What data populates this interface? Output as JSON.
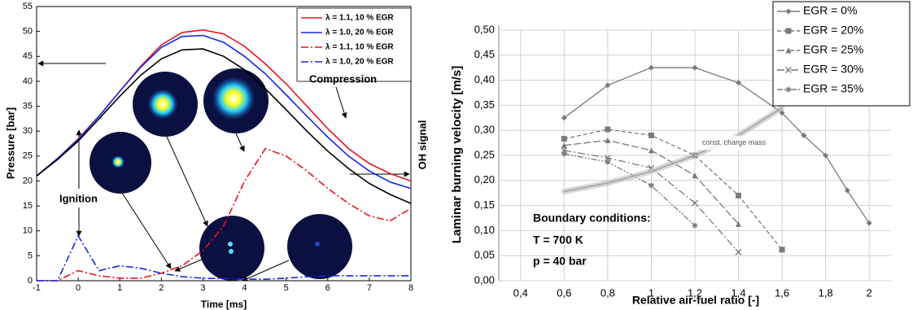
{
  "chart_data": [
    {
      "type": "line",
      "xlabel": "Time [ms]",
      "ylabel": "Pressure [bar]",
      "y2label": "OH signal",
      "x": [
        -1,
        -0.5,
        0,
        0.5,
        1,
        1.5,
        2,
        2.5,
        3,
        3.5,
        4,
        4.5,
        5,
        5.5,
        6,
        6.5,
        7,
        7.5,
        8
      ],
      "series": [
        {
          "name": "λ = 1.1, 10 % EGR",
          "color": "#e8141e",
          "dash": "solid",
          "values": [
            21,
            24.5,
            28.5,
            33,
            38,
            43,
            47.3,
            49.8,
            50.3,
            49.5,
            47,
            43.5,
            39.5,
            35,
            30.5,
            26.5,
            23.5,
            21.5,
            20
          ]
        },
        {
          "name": "λ = 1.0, 20 % EGR",
          "color": "#1428e6",
          "dash": "solid",
          "values": [
            21,
            24.5,
            28.3,
            33,
            38,
            42.8,
            46.8,
            49,
            49.2,
            47.8,
            45,
            41.5,
            37.3,
            33,
            28.8,
            25,
            22,
            19.8,
            18.5
          ]
        },
        {
          "name": "λ = 1.1, 10 % EGR",
          "color": "#e8141e",
          "dash": "dash-dot",
          "values": [
            0,
            0,
            2,
            1,
            0.5,
            0.5,
            1.5,
            3,
            6,
            11,
            20,
            26.5,
            25,
            22,
            18.5,
            15.5,
            13,
            12,
            14.5
          ]
        },
        {
          "name": "λ = 1.0, 20 % EGR",
          "color": "#1428e6",
          "dash": "dash-dot",
          "values": [
            0,
            0,
            9,
            2,
            3,
            2.5,
            1.5,
            0.8,
            0.5,
            0.4,
            0.3,
            0.3,
            0.5,
            0.8,
            1,
            1,
            1,
            1,
            1
          ]
        },
        {
          "name": null,
          "color": "#000000",
          "dash": "solid",
          "values": [
            21,
            24.3,
            28,
            32.5,
            37,
            41.2,
            44.5,
            46.3,
            46.5,
            45,
            42.3,
            38.5,
            34.3,
            30,
            26,
            22.5,
            19.5,
            17.3,
            15.5
          ]
        }
      ],
      "annotations": [
        "Ignition",
        "Compression"
      ],
      "xlim": [
        -1,
        8
      ],
      "xticks": [
        -1,
        0,
        1,
        2,
        3,
        4,
        5,
        6,
        7,
        8
      ],
      "ylim": [
        0,
        55
      ],
      "yticks": [
        0,
        5,
        10,
        15,
        20,
        25,
        30,
        35,
        40,
        45,
        50,
        55
      ],
      "grid": false,
      "legend": "top-right"
    },
    {
      "type": "line",
      "xlabel": "Relative air-fuel ratio [-]",
      "ylabel": "Laminar burning velocity [m/s]",
      "series": [
        {
          "name": "EGR = 0%",
          "color": "#7a7a7a",
          "dash": "solid",
          "marker": "diamond",
          "x": [
            0.6,
            0.8,
            1.0,
            1.2,
            1.4,
            1.6,
            1.7,
            1.8,
            1.9,
            2.0
          ],
          "values": [
            0.325,
            0.39,
            0.425,
            0.425,
            0.395,
            0.335,
            0.29,
            0.25,
            0.18,
            0.115
          ]
        },
        {
          "name": "EGR = 20%",
          "color": "#7a7a7a",
          "dash": "dashed",
          "marker": "square",
          "x": [
            0.6,
            0.8,
            1.0,
            1.2,
            1.4,
            1.6
          ],
          "values": [
            0.283,
            0.302,
            0.29,
            0.25,
            0.17,
            0.062
          ]
        },
        {
          "name": "EGR = 25%",
          "color": "#7a7a7a",
          "dash": "long-dash",
          "marker": "triangle",
          "x": [
            0.6,
            0.8,
            1.0,
            1.2,
            1.4
          ],
          "values": [
            0.27,
            0.28,
            0.26,
            0.21,
            0.113
          ]
        },
        {
          "name": "EGR = 30%",
          "color": "#7a7a7a",
          "dash": "dash-dot",
          "marker": "cross",
          "x": [
            0.6,
            0.8,
            1.0,
            1.2,
            1.4
          ],
          "values": [
            0.26,
            0.245,
            0.225,
            0.155,
            0.057
          ]
        },
        {
          "name": "EGR = 35%",
          "color": "#7a7a7a",
          "dash": "dash-dot-dot",
          "marker": "star",
          "x": [
            0.6,
            0.8,
            1.0,
            1.2
          ],
          "values": [
            0.253,
            0.237,
            0.19,
            0.11
          ]
        },
        {
          "name": null,
          "label": "const. charge mass",
          "color": "#bdbdbd",
          "dash": "band",
          "x": [
            0.6,
            0.8,
            1.0,
            1.2,
            1.4,
            1.6
          ],
          "values": [
            0.178,
            0.195,
            0.218,
            0.25,
            0.29,
            0.345
          ]
        }
      ],
      "annotations": [
        "Boundary conditions:",
        "T = 700 K",
        "p = 40 bar"
      ],
      "xlim": [
        0.3,
        2.1
      ],
      "xticks": [
        {
          "value": 0.4,
          "label": "0,4"
        },
        {
          "value": 0.6,
          "label": "0,6"
        },
        {
          "value": 0.8,
          "label": "0,8"
        },
        1,
        {
          "value": 1.2,
          "label": "1,2"
        },
        {
          "value": 1.4,
          "label": "1,4"
        },
        {
          "value": 1.6,
          "label": "1,6"
        },
        {
          "value": 1.8,
          "label": "1,8"
        },
        2
      ],
      "ylim": [
        0,
        0.5
      ],
      "yticks": [
        {
          "value": 0,
          "label": "0,00"
        },
        {
          "value": 0.05,
          "label": "0,05"
        },
        {
          "value": 0.1,
          "label": "0,10"
        },
        {
          "value": 0.15,
          "label": "0,15"
        },
        {
          "value": 0.2,
          "label": "0,20"
        },
        {
          "value": 0.25,
          "label": "0,25"
        },
        {
          "value": 0.3,
          "label": "0,30"
        },
        {
          "value": 0.35,
          "label": "0,35"
        },
        {
          "value": 0.4,
          "label": "0,40"
        },
        {
          "value": 0.45,
          "label": "0,45"
        },
        {
          "value": 0.5,
          "label": "0,50"
        }
      ],
      "grid": true,
      "legend": "top-right"
    }
  ]
}
